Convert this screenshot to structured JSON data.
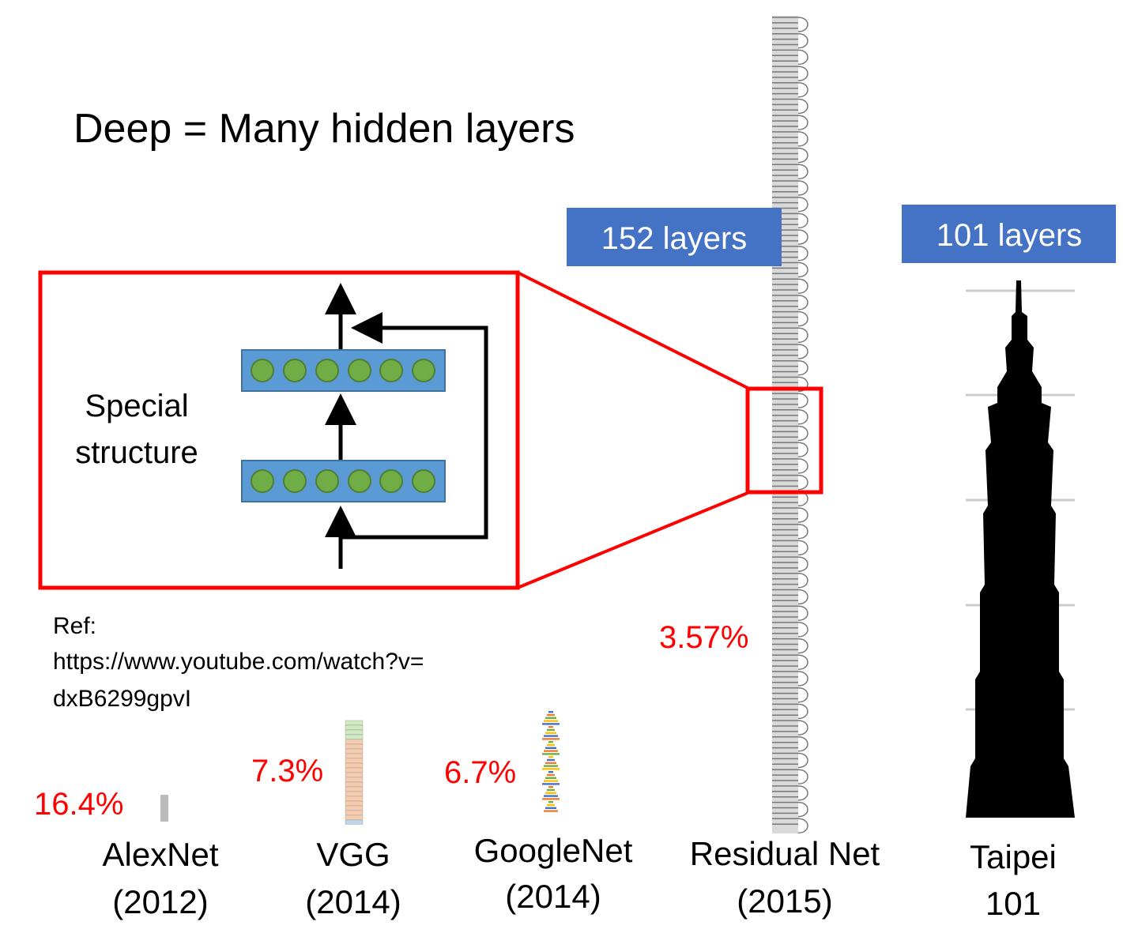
{
  "title": "Deep = Many hidden layers",
  "badges": [
    "152 layers",
    "101 layers"
  ],
  "inset": {
    "label": [
      "Special",
      "structure"
    ]
  },
  "reference": {
    "label": "Ref:",
    "lines": [
      "https://www.youtube.com/watch?v=",
      "dxB6299gpvI"
    ]
  },
  "models": [
    {
      "name": "AlexNet",
      "year": "(2012)",
      "error": "16.4%"
    },
    {
      "name": "VGG",
      "year": "(2014)",
      "error": "7.3%"
    },
    {
      "name": "GoogleNet",
      "year": "(2014)",
      "error": "6.7%"
    },
    {
      "name": "Residual Net",
      "year": "(2015)",
      "error": "3.57%"
    }
  ],
  "building": {
    "name": "Taipei",
    "number": "101"
  }
}
